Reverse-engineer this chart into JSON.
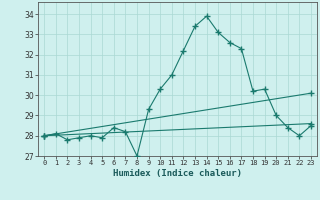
{
  "title": "",
  "xlabel": "Humidex (Indice chaleur)",
  "background_color": "#cff0ee",
  "grid_color": "#aad8d4",
  "line_color": "#1a7a6e",
  "xlim": [
    -0.5,
    23.5
  ],
  "ylim": [
    27.0,
    34.6
  ],
  "yticks": [
    27,
    28,
    29,
    30,
    31,
    32,
    33,
    34
  ],
  "xticks": [
    0,
    1,
    2,
    3,
    4,
    5,
    6,
    7,
    8,
    9,
    10,
    11,
    12,
    13,
    14,
    15,
    16,
    17,
    18,
    19,
    20,
    21,
    22,
    23
  ],
  "series1": {
    "x": [
      0,
      1,
      2,
      3,
      4,
      5,
      6,
      7,
      8,
      9,
      10,
      11,
      12,
      13,
      14,
      15,
      16,
      17,
      18,
      19,
      20,
      21,
      22,
      23
    ],
    "y": [
      28.0,
      28.1,
      27.8,
      27.9,
      28.0,
      27.9,
      28.4,
      28.2,
      27.0,
      29.3,
      30.3,
      31.0,
      32.2,
      33.4,
      33.9,
      33.1,
      32.6,
      32.3,
      30.2,
      30.3,
      29.0,
      28.4,
      28.0,
      28.5
    ]
  },
  "series2": {
    "x": [
      0,
      23
    ],
    "y": [
      28.0,
      30.1
    ]
  },
  "series3": {
    "x": [
      0,
      23
    ],
    "y": [
      28.0,
      28.6
    ]
  }
}
